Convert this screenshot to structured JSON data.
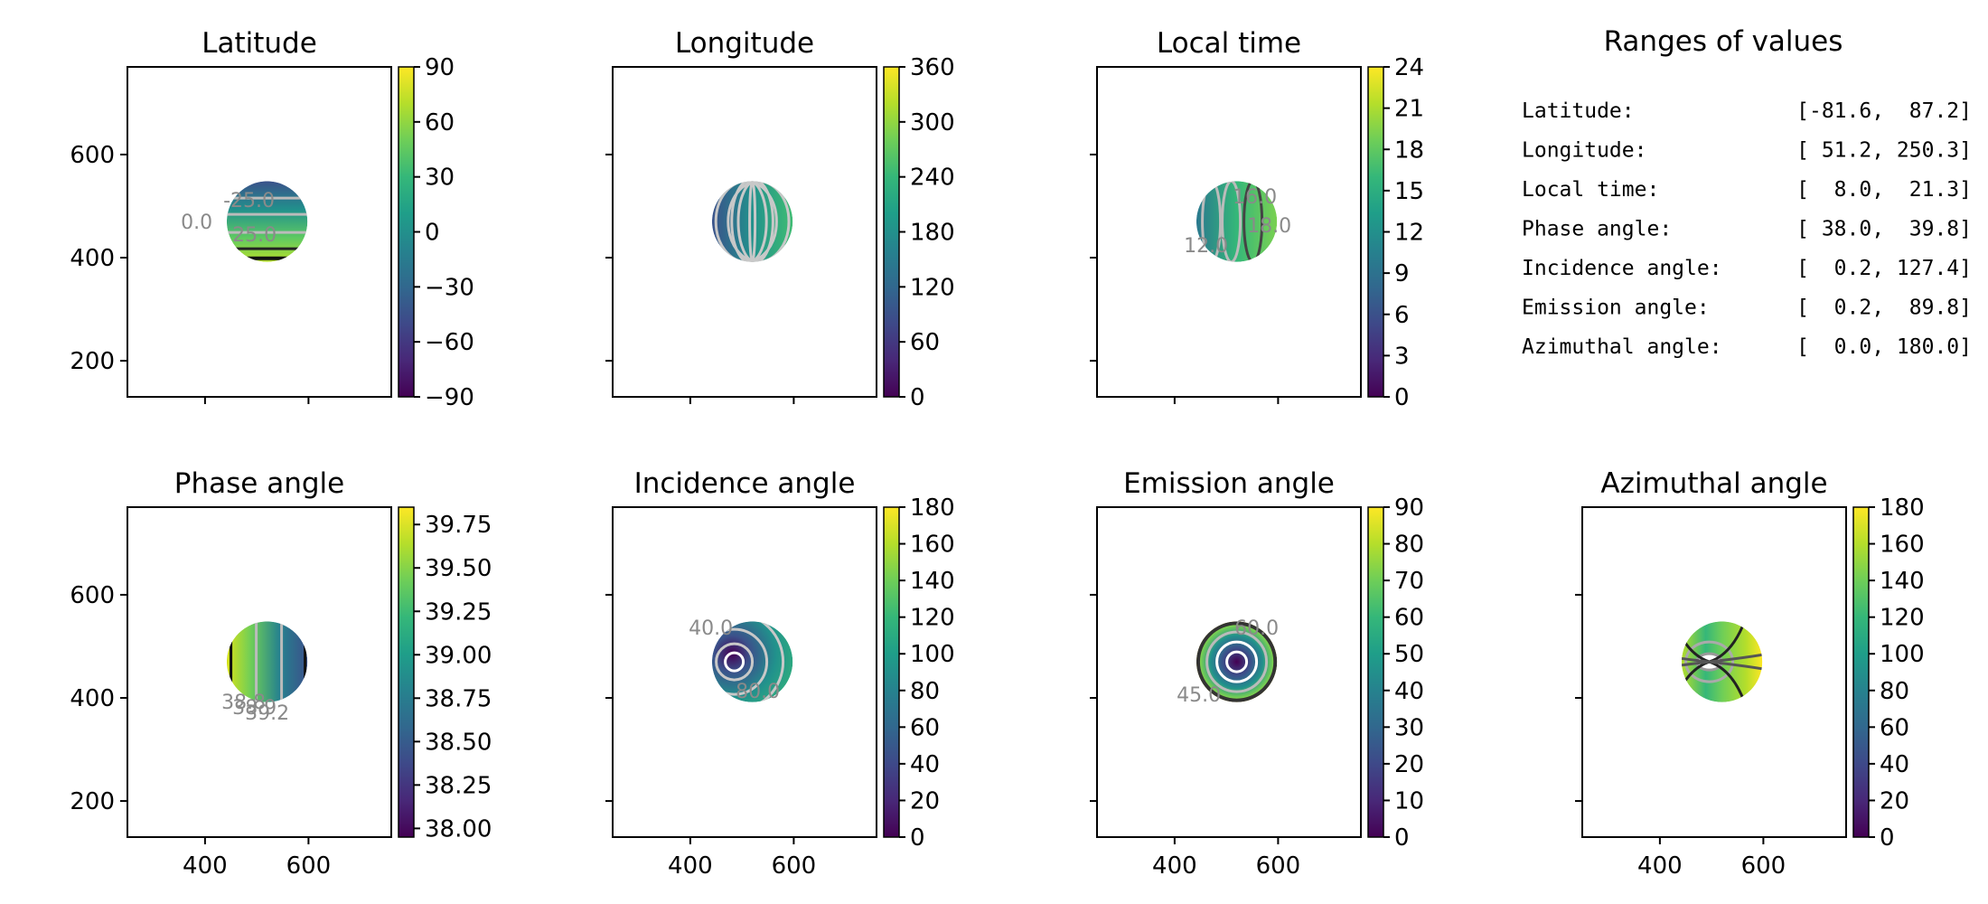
{
  "figure": {
    "panels": [
      {
        "id": "lat",
        "title": "Latitude",
        "cb_ticks": [
          "90",
          "60",
          "30",
          "0",
          "−30",
          "−60",
          "−90"
        ],
        "contour_labels": [
          "-25.0",
          "0.0",
          "25.0"
        ]
      },
      {
        "id": "lon",
        "title": "Longitude",
        "cb_ticks": [
          "360",
          "300",
          "240",
          "180",
          "120",
          "60",
          "0"
        ],
        "contour_labels": []
      },
      {
        "id": "lt",
        "title": "Local time",
        "cb_ticks": [
          "24",
          "21",
          "18",
          "15",
          "12",
          "9",
          "6",
          "3",
          "0"
        ],
        "contour_labels": [
          "12.0",
          "16.0",
          "18.0"
        ]
      },
      {
        "id": "phase",
        "title": "Phase angle",
        "cb_ticks": [
          "39.75",
          "39.50",
          "39.25",
          "39.00",
          "38.75",
          "38.50",
          "38.25",
          "38.00"
        ],
        "contour_labels": [
          "38.8",
          "38.9",
          "39.2"
        ]
      },
      {
        "id": "inc",
        "title": "Incidence angle",
        "cb_ticks": [
          "180",
          "160",
          "140",
          "120",
          "100",
          "80",
          "60",
          "40",
          "20",
          "0"
        ],
        "contour_labels": [
          "40.0",
          "80.0"
        ]
      },
      {
        "id": "emi",
        "title": "Emission angle",
        "cb_ticks": [
          "90",
          "80",
          "70",
          "60",
          "50",
          "40",
          "30",
          "20",
          "10",
          "0"
        ],
        "contour_labels": [
          "45.0",
          "60.0"
        ]
      },
      {
        "id": "azi",
        "title": "Azimuthal angle",
        "cb_ticks": [
          "180",
          "160",
          "140",
          "120",
          "100",
          "80",
          "60",
          "40",
          "20",
          "0"
        ],
        "contour_labels": []
      }
    ],
    "ranges": {
      "title": "Ranges of values",
      "rows": [
        {
          "label": "Latitude:",
          "value": "[-81.6,  87.2]"
        },
        {
          "label": "Longitude:",
          "value": "[ 51.2, 250.3]"
        },
        {
          "label": "Local time:",
          "value": "[  8.0,  21.3]"
        },
        {
          "label": "Phase angle:",
          "value": "[ 38.0,  39.8]"
        },
        {
          "label": "Incidence angle:",
          "value": "[  0.2, 127.4]"
        },
        {
          "label": "Emission angle:",
          "value": "[  0.2,  89.8]"
        },
        {
          "label": "Azimuthal angle:",
          "value": "[  0.0, 180.0]"
        }
      ]
    },
    "axes": {
      "xticks": [
        "400",
        "600"
      ],
      "yticks": [
        "600",
        "400",
        "200"
      ]
    }
  },
  "chart_data": {
    "type": "heatmap",
    "colormap": "viridis",
    "colormap_stops": [
      "#440154",
      "#482878",
      "#3e4989",
      "#31688e",
      "#26828e",
      "#1f9e89",
      "#35b779",
      "#6ece58",
      "#b5de2b",
      "#fde725"
    ],
    "xlim": [
      250,
      760
    ],
    "ylim": [
      130,
      770
    ],
    "disc_center": [
      520,
      470
    ],
    "disc_radius": 78,
    "panels": [
      {
        "name": "Latitude",
        "range": [
          -90,
          90
        ]
      },
      {
        "name": "Longitude",
        "range": [
          0,
          360
        ]
      },
      {
        "name": "Local time",
        "range": [
          0,
          24
        ]
      },
      {
        "name": "Phase angle",
        "range": [
          37.95,
          39.85
        ]
      },
      {
        "name": "Incidence angle",
        "range": [
          0,
          180
        ]
      },
      {
        "name": "Emission angle",
        "range": [
          0,
          90
        ]
      },
      {
        "name": "Azimuthal angle",
        "range": [
          0,
          180
        ]
      }
    ]
  }
}
